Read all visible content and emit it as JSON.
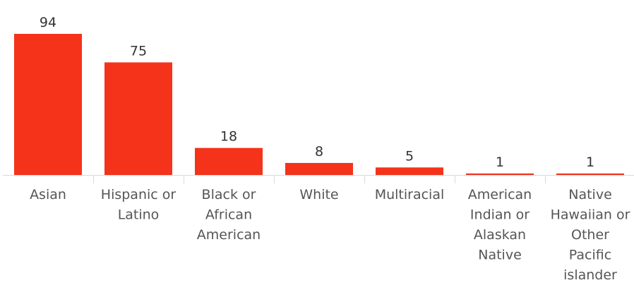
{
  "chart_data": {
    "type": "bar",
    "title": "",
    "xlabel": "",
    "ylabel": "",
    "categories": [
      "Asian",
      "Hispanic or Latino",
      "Black or African American",
      "White",
      "Multiracial",
      "American Indian or Alaskan Native",
      "Native Hawaiian or Other Pacific islander"
    ],
    "category_label_lines": [
      [
        "Asian"
      ],
      [
        "Hispanic or",
        "Latino"
      ],
      [
        "Black or",
        "African",
        "American"
      ],
      [
        "White"
      ],
      [
        "Multiracial"
      ],
      [
        "American",
        "Indian or",
        "Alaskan",
        "Native"
      ],
      [
        "Native",
        "Hawaiian or",
        "Other",
        "Pacific",
        "islander"
      ]
    ],
    "values": [
      94,
      75,
      18,
      8,
      5,
      1,
      1
    ],
    "data_labels": [
      "94",
      "75",
      "18",
      "8",
      "5",
      "1",
      "1"
    ],
    "ylim": [
      0,
      94
    ],
    "grid": false,
    "legend": "none",
    "colors": {
      "bar": "#F5331B",
      "axis": "#d9d9d9",
      "value_text": "#333333",
      "category_text": "#555555"
    }
  }
}
